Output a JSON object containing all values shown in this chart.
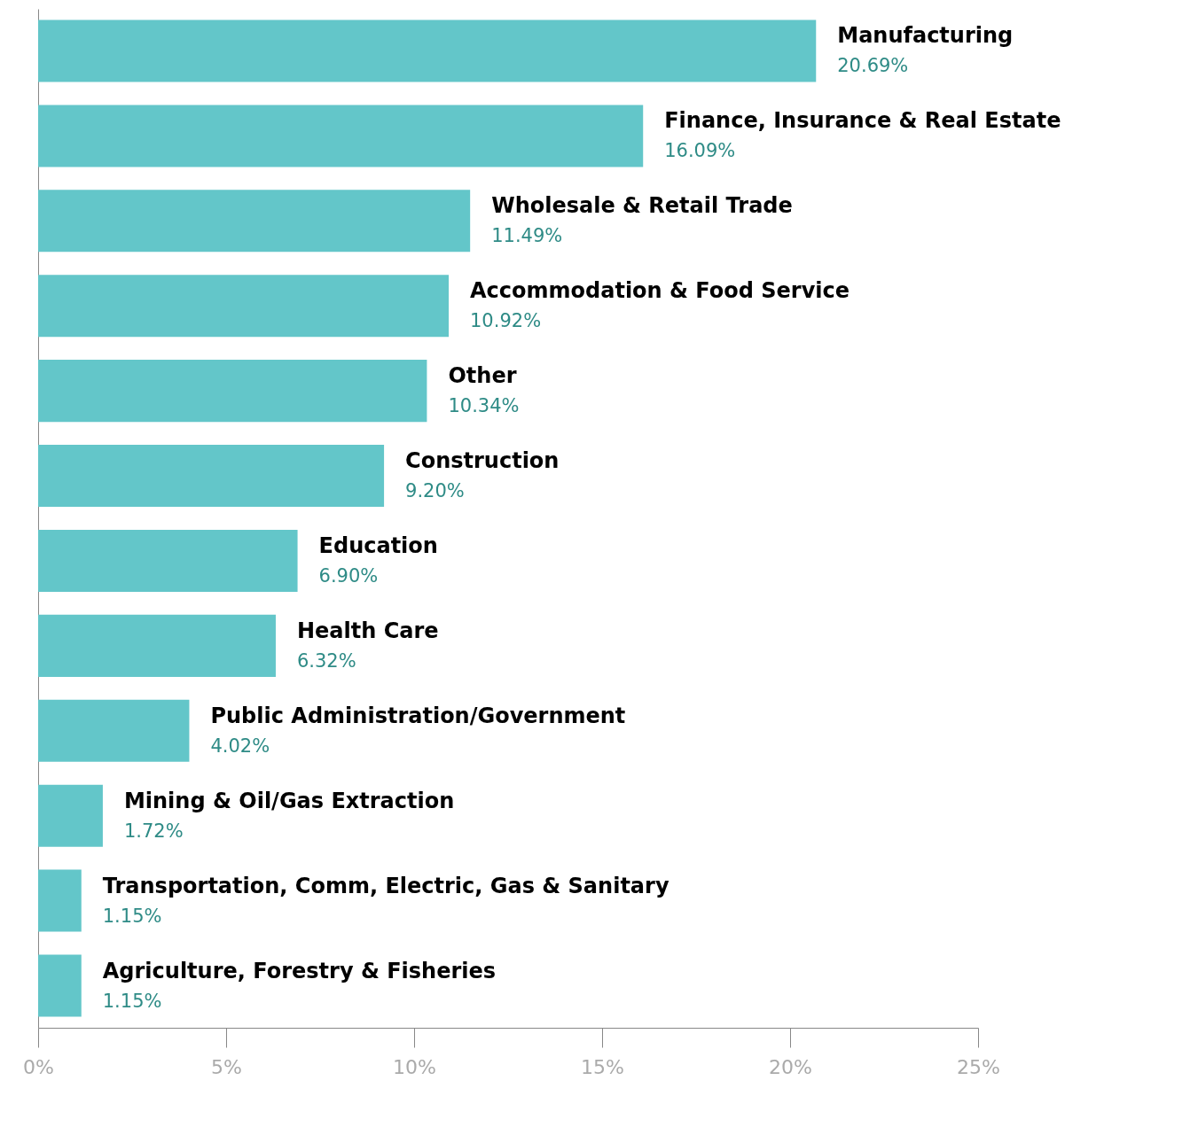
{
  "chart_data": {
    "type": "bar",
    "orientation": "horizontal",
    "categories": [
      "Manufacturing",
      "Finance, Insurance & Real Estate",
      "Wholesale & Retail Trade",
      "Accommodation & Food Service",
      "Other",
      "Construction",
      "Education",
      "Health Care",
      "Public Administration/Government",
      "Mining & Oil/Gas Extraction",
      "Transportation, Comm, Electric, Gas & Sanitary",
      "Agriculture, Forestry & Fisheries"
    ],
    "values": [
      20.69,
      16.09,
      11.49,
      10.92,
      10.34,
      9.2,
      6.9,
      6.32,
      4.02,
      1.72,
      1.15,
      1.15
    ],
    "value_labels": [
      "20.69%",
      "16.09%",
      "11.49%",
      "10.92%",
      "10.34%",
      "9.20%",
      "6.90%",
      "6.32%",
      "4.02%",
      "1.72%",
      "1.15%",
      "1.15%"
    ],
    "color": "#63c6c9",
    "xlim": [
      0,
      25
    ],
    "xticks": [
      {
        "value": 0,
        "label": "0%"
      },
      {
        "value": 5,
        "label": "5%"
      },
      {
        "value": 10,
        "label": "10%"
      },
      {
        "value": 15,
        "label": "15%"
      },
      {
        "value": 20,
        "label": "20%"
      },
      {
        "value": 25,
        "label": "25%"
      }
    ],
    "tick_labels": "x",
    "grid": false
  }
}
